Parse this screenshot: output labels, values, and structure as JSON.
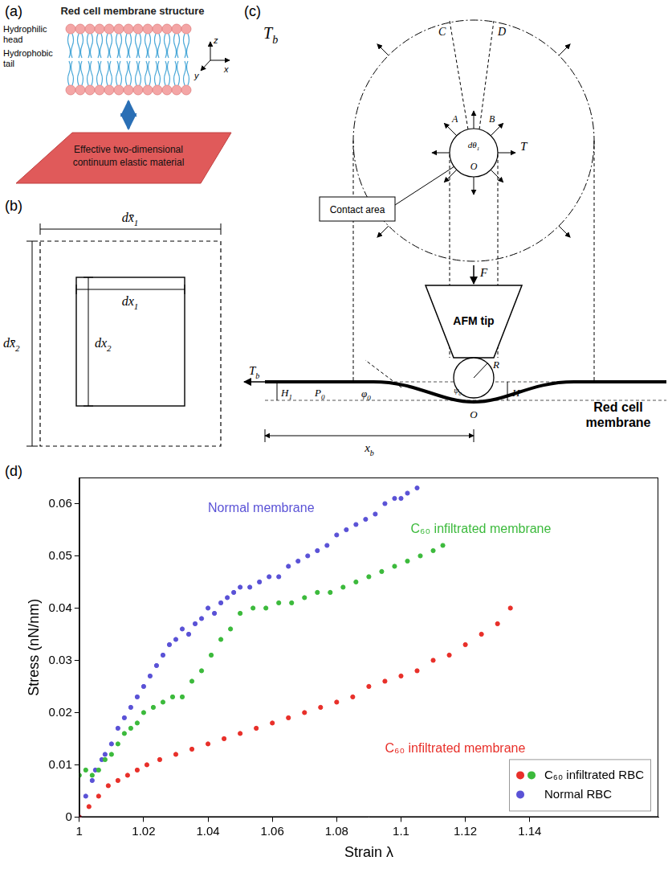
{
  "panel_a": {
    "label": "(a)",
    "title": "Red cell membrane structure",
    "head_label": "Hydrophilic head",
    "tail_label": "Hydrophobic tail",
    "axes": [
      "x",
      "y",
      "z"
    ],
    "model_label": "Effective two-dimensional continuum elastic material"
  },
  "panel_b": {
    "label": "(b)",
    "outer_width": {
      "base": "dx̄",
      "sub": "1"
    },
    "outer_height": {
      "base": "dx̄",
      "sub": "2"
    },
    "inner_width": {
      "base": "dx",
      "sub": "1"
    },
    "inner_height": {
      "base": "dx",
      "sub": "2"
    }
  },
  "panel_c": {
    "label": "(c)",
    "far_tension": {
      "base": "T",
      "sub": "b"
    },
    "line_labels": [
      "C",
      "D"
    ],
    "arc_labels": [
      "A",
      "B"
    ],
    "angle": {
      "base": "dθ",
      "sub": "1"
    },
    "center": "O",
    "tension": "T",
    "contact_area": "Contact area",
    "force": "F",
    "tip": "AFM tip",
    "membrane_tension": {
      "base": "T",
      "sub": "b"
    },
    "height_1": {
      "base": "H",
      "sub": "1"
    },
    "point_p": {
      "base": "P",
      "sub": "0"
    },
    "angle_phi": {
      "base": "φ",
      "sub": "0"
    },
    "radius": "R",
    "angle_psi": {
      "base": "ψ",
      "sub": "0"
    },
    "depth": "H",
    "origin": "O",
    "membrane": "Red cell membrane",
    "x_extent": {
      "base": "x",
      "sub": "b"
    }
  },
  "panel_d": {
    "label": "(d)"
  },
  "chart_data": {
    "type": "scatter",
    "x_label": "Strain λ",
    "y_label": "Stress (nN/nm)",
    "xlim": [
      1,
      1.18
    ],
    "xticks": [
      1,
      1.02,
      1.04,
      1.06,
      1.08,
      1.1,
      1.12,
      1.14
    ],
    "ylim": [
      0,
      0.065
    ],
    "yticks": [
      0,
      0.01,
      0.02,
      0.03,
      0.04,
      0.05,
      0.06
    ],
    "grid": false,
    "legend": "lower right",
    "marker": "circle",
    "series": [
      {
        "name": "C₆₀ infiltrated RBC",
        "color": "#e8302a",
        "x": [
          1,
          1.003,
          1.006,
          1.009,
          1.012,
          1.015,
          1.018,
          1.021,
          1.025,
          1.03,
          1.035,
          1.04,
          1.045,
          1.05,
          1.055,
          1.06,
          1.065,
          1.07,
          1.075,
          1.08,
          1.085,
          1.09,
          1.095,
          1.1,
          1.105,
          1.11,
          1.115,
          1.12,
          1.125,
          1.13,
          1.134
        ],
        "values": [
          0,
          0.002,
          0.004,
          0.006,
          0.007,
          0.008,
          0.009,
          0.01,
          0.011,
          0.012,
          0.013,
          0.014,
          0.015,
          0.016,
          0.017,
          0.018,
          0.019,
          0.02,
          0.021,
          0.022,
          0.023,
          0.025,
          0.026,
          0.027,
          0.028,
          0.03,
          0.031,
          0.033,
          0.035,
          0.037,
          0.04
        ]
      },
      {
        "name": "C₆₀ infiltrated RBC",
        "color": "#3cba3c",
        "x": [
          1,
          1.002,
          1.004,
          1.006,
          1.008,
          1.01,
          1.012,
          1.014,
          1.016,
          1.018,
          1.02,
          1.023,
          1.026,
          1.029,
          1.032,
          1.035,
          1.038,
          1.041,
          1.044,
          1.047,
          1.05,
          1.054,
          1.058,
          1.062,
          1.066,
          1.07,
          1.074,
          1.078,
          1.082,
          1.086,
          1.09,
          1.094,
          1.098,
          1.102,
          1.106,
          1.11,
          1.113
        ],
        "values": [
          0.008,
          0.009,
          0.008,
          0.009,
          0.011,
          0.012,
          0.014,
          0.016,
          0.017,
          0.018,
          0.02,
          0.021,
          0.022,
          0.023,
          0.023,
          0.026,
          0.028,
          0.031,
          0.034,
          0.036,
          0.039,
          0.04,
          0.04,
          0.041,
          0.041,
          0.042,
          0.043,
          0.043,
          0.044,
          0.045,
          0.046,
          0.047,
          0.048,
          0.049,
          0.05,
          0.051,
          0.052
        ]
      },
      {
        "name": "Normal RBC",
        "color": "#5a52d6",
        "x": [
          1,
          1.002,
          1.004,
          1.005,
          1.007,
          1.008,
          1.01,
          1.012,
          1.014,
          1.016,
          1.018,
          1.02,
          1.022,
          1.024,
          1.026,
          1.028,
          1.03,
          1.032,
          1.034,
          1.036,
          1.038,
          1.04,
          1.042,
          1.044,
          1.046,
          1.048,
          1.05,
          1.053,
          1.056,
          1.059,
          1.062,
          1.065,
          1.068,
          1.071,
          1.074,
          1.077,
          1.08,
          1.083,
          1.086,
          1.089,
          1.092,
          1.095,
          1.098,
          1.1,
          1.102,
          1.105
        ],
        "values": [
          0,
          0.004,
          0.007,
          0.009,
          0.011,
          0.012,
          0.014,
          0.017,
          0.019,
          0.021,
          0.023,
          0.025,
          0.027,
          0.029,
          0.031,
          0.033,
          0.034,
          0.036,
          0.035,
          0.037,
          0.038,
          0.04,
          0.039,
          0.041,
          0.042,
          0.043,
          0.044,
          0.044,
          0.045,
          0.046,
          0.046,
          0.048,
          0.049,
          0.05,
          0.051,
          0.052,
          0.054,
          0.055,
          0.056,
          0.057,
          0.058,
          0.06,
          0.061,
          0.061,
          0.062,
          0.063
        ]
      }
    ],
    "annotations": [
      {
        "text": "Normal membrane",
        "x": 1.04,
        "y": 0.059,
        "color": "#5a52d6"
      },
      {
        "text": "C₆₀ infiltrated membrane",
        "x": 1.103,
        "y": 0.055,
        "color": "#3cba3c"
      },
      {
        "text": "C₆₀ infiltrated membrane",
        "x": 1.095,
        "y": 0.013,
        "color": "#e8302a"
      }
    ]
  }
}
